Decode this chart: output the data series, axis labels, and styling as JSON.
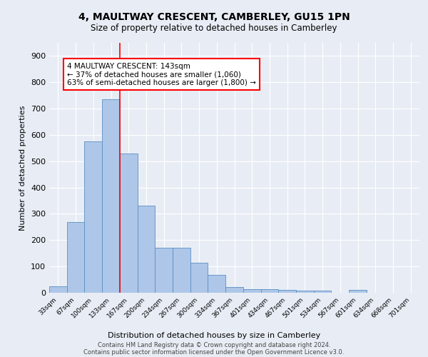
{
  "title": "4, MAULTWAY CRESCENT, CAMBERLEY, GU15 1PN",
  "subtitle": "Size of property relative to detached houses in Camberley",
  "xlabel": "Distribution of detached houses by size in Camberley",
  "ylabel": "Number of detached properties",
  "bar_labels": [
    "33sqm",
    "67sqm",
    "100sqm",
    "133sqm",
    "167sqm",
    "200sqm",
    "234sqm",
    "267sqm",
    "300sqm",
    "334sqm",
    "367sqm",
    "401sqm",
    "434sqm",
    "467sqm",
    "501sqm",
    "534sqm",
    "567sqm",
    "601sqm",
    "634sqm",
    "668sqm",
    "701sqm"
  ],
  "bar_values": [
    25,
    270,
    575,
    735,
    530,
    330,
    170,
    170,
    115,
    68,
    22,
    14,
    14,
    10,
    8,
    8,
    0,
    10,
    0,
    0,
    0
  ],
  "bar_color": "#aec6e8",
  "bar_edge_color": "#5a8fc4",
  "vline_x_index": 3,
  "vline_color": "red",
  "annotation_text": "4 MAULTWAY CRESCENT: 143sqm\n← 37% of detached houses are smaller (1,060)\n63% of semi-detached houses are larger (1,800) →",
  "annotation_box_color": "red",
  "background_color": "#e8edf5",
  "plot_bg_color": "#e8edf5",
  "ylim": [
    0,
    950
  ],
  "yticks": [
    0,
    100,
    200,
    300,
    400,
    500,
    600,
    700,
    800,
    900
  ],
  "footer_line1": "Contains HM Land Registry data © Crown copyright and database right 2024.",
  "footer_line2": "Contains public sector information licensed under the Open Government Licence v3.0."
}
